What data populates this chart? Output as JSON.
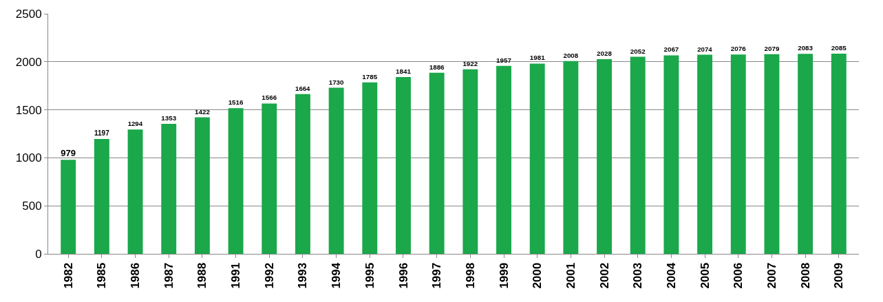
{
  "chart_data": {
    "type": "bar",
    "categories": [
      "1982",
      "1985",
      "1986",
      "1987",
      "1988",
      "1991",
      "1992",
      "1993",
      "1994",
      "1995",
      "1996",
      "1997",
      "1998",
      "1999",
      "2000",
      "2001",
      "2002",
      "2003",
      "2004",
      "2005",
      "2006",
      "2007",
      "2008",
      "2009"
    ],
    "values": [
      979,
      1197,
      1294,
      1353,
      1422,
      1516,
      1566,
      1664,
      1730,
      1785,
      1841,
      1886,
      1922,
      1957,
      1981,
      2008,
      2028,
      2052,
      2067,
      2074,
      2076,
      2079,
      2083,
      2085
    ],
    "color": "#1aa84a",
    "ylim": [
      0,
      2500
    ],
    "yticks": [
      0,
      500,
      1000,
      1500,
      2000,
      2500
    ],
    "grid": "y",
    "data_labels": true,
    "legend": false
  }
}
